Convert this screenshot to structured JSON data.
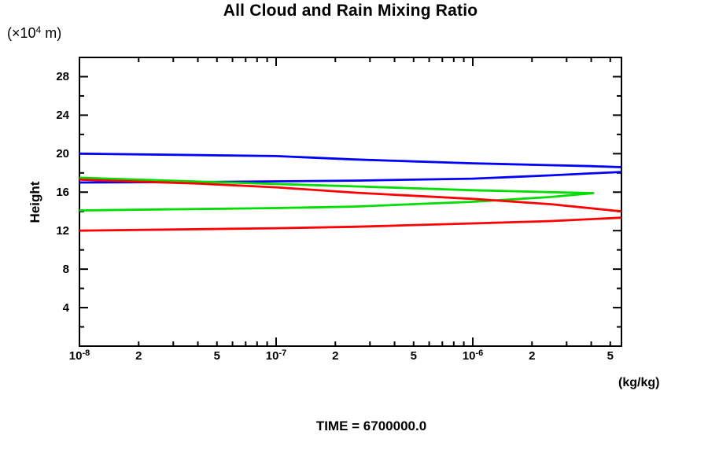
{
  "chart_data": {
    "type": "line",
    "title": "All Cloud and Rain Mixing Ratio",
    "footer": "TIME = 6700000.0",
    "xlabel": "(kg/kg)",
    "ylabel": "Height",
    "ylabel_units": {
      "pre": "(×10",
      "sup": "4",
      "post": " m)"
    },
    "x_scale": "log",
    "xlim": [
      1e-08,
      5.7e-06
    ],
    "ylim": [
      0,
      30
    ],
    "grid": false,
    "legend": "none",
    "x_axis": {
      "major_tick_values": [
        1e-07,
        1e-06
      ],
      "minor_tick_values": [
        2e-08,
        3e-08,
        4e-08,
        5e-08,
        6e-08,
        7e-08,
        8e-08,
        9e-08,
        2e-07,
        3e-07,
        4e-07,
        5e-07,
        6e-07,
        7e-07,
        8e-07,
        9e-07,
        2e-06,
        3e-06,
        4e-06,
        5e-06
      ],
      "tick_labels": [
        {
          "base": "10",
          "sup": "-8",
          "value": 1e-08
        },
        {
          "base": "2",
          "value": 2e-08
        },
        {
          "base": "5",
          "value": 5e-08
        },
        {
          "base": "10",
          "sup": "-7",
          "value": 1e-07
        },
        {
          "base": "2",
          "value": 2e-07
        },
        {
          "base": "5",
          "value": 5e-07
        },
        {
          "base": "10",
          "sup": "-6",
          "value": 1e-06
        },
        {
          "base": "2",
          "value": 2e-06
        },
        {
          "base": "5",
          "value": 5e-06
        }
      ]
    },
    "y_axis": {
      "major_ticks": [
        4,
        8,
        12,
        16,
        20,
        24,
        28
      ],
      "minor_ticks": [
        2,
        6,
        10,
        14,
        18,
        22,
        26
      ]
    },
    "series": [
      {
        "name": "blue-profile",
        "color": "#0000ff",
        "branches": [
          [
            [
              1e-08,
              20.0
            ],
            [
              1e-07,
              19.75
            ],
            [
              2.5e-07,
              19.4
            ],
            [
              1e-06,
              19.0
            ],
            [
              2.5e-06,
              18.8
            ],
            [
              4e-06,
              18.7
            ],
            [
              5.7e-06,
              18.6
            ]
          ],
          [
            [
              1e-08,
              17.0
            ],
            [
              4e-08,
              17.05
            ],
            [
              2.5e-07,
              17.2
            ],
            [
              1e-06,
              17.4
            ],
            [
              2.5e-06,
              17.75
            ],
            [
              4e-06,
              17.95
            ],
            [
              5.7e-06,
              18.1
            ]
          ]
        ]
      },
      {
        "name": "green-profile",
        "color": "#00dd00",
        "branches": [
          [
            [
              1e-08,
              17.5
            ],
            [
              4e-08,
              17.1
            ],
            [
              1e-07,
              16.85
            ],
            [
              2.5e-07,
              16.6
            ],
            [
              1e-06,
              16.2
            ],
            [
              2.5e-06,
              16.0
            ],
            [
              4.1e-06,
              15.9
            ],
            [
              2.5e-06,
              15.5
            ],
            [
              1e-06,
              15.0
            ],
            [
              2.5e-07,
              14.5
            ],
            [
              1e-07,
              14.35
            ],
            [
              1e-08,
              14.1
            ]
          ]
        ]
      },
      {
        "name": "red-profile",
        "color": "#ff0000",
        "branches": [
          [
            [
              1e-08,
              17.3
            ],
            [
              4e-08,
              16.9
            ],
            [
              1e-07,
              16.5
            ],
            [
              2.5e-07,
              15.95
            ],
            [
              1e-06,
              15.3
            ],
            [
              2.5e-06,
              14.75
            ],
            [
              5.7e-06,
              14.0
            ]
          ],
          [
            [
              1e-08,
              12.0
            ],
            [
              1e-07,
              12.25
            ],
            [
              2.5e-07,
              12.4
            ],
            [
              1e-06,
              12.75
            ],
            [
              2.5e-06,
              13.0
            ],
            [
              5.7e-06,
              13.35
            ]
          ]
        ]
      }
    ]
  }
}
